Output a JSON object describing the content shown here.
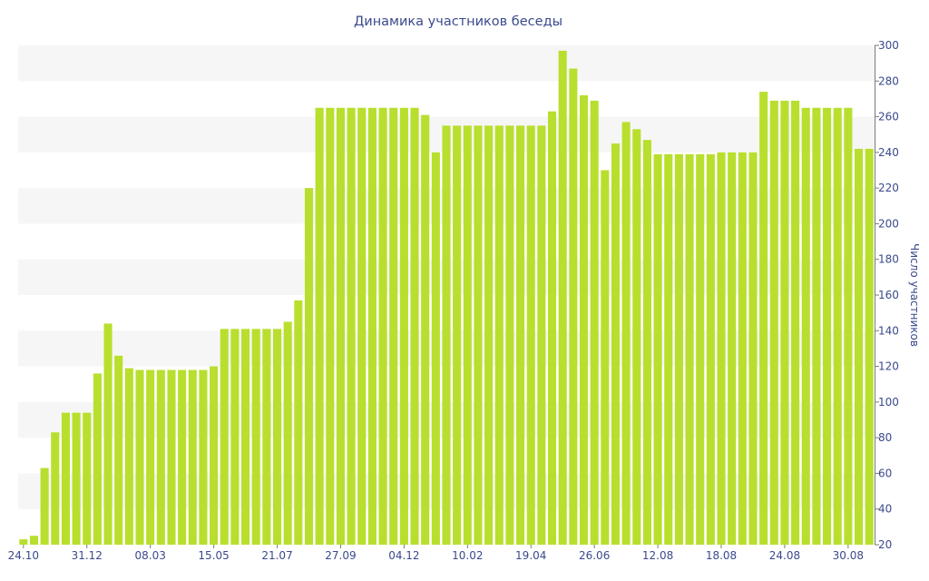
{
  "chart_data": {
    "type": "bar",
    "title": "Динамика участников беседы",
    "xlabel": "",
    "ylabel": "Число участников",
    "ylim": [
      20,
      300
    ],
    "yticks": [
      20,
      40,
      60,
      80,
      100,
      120,
      140,
      160,
      180,
      200,
      220,
      240,
      260,
      280,
      300
    ],
    "grid": true,
    "legend": "none",
    "colors": {
      "bar": "#b8df2e",
      "text": "#3a4a8c",
      "band": "#f6f6f6"
    },
    "x_tick_labels": [
      {
        "index": 0,
        "label": "24.10"
      },
      {
        "index": 6,
        "label": "31.12"
      },
      {
        "index": 12,
        "label": "08.03"
      },
      {
        "index": 18,
        "label": "15.05"
      },
      {
        "index": 24,
        "label": "21.07"
      },
      {
        "index": 30,
        "label": "27.09"
      },
      {
        "index": 36,
        "label": "04.12"
      },
      {
        "index": 42,
        "label": "10.02"
      },
      {
        "index": 48,
        "label": "19.04"
      },
      {
        "index": 54,
        "label": "26.06"
      },
      {
        "index": 60,
        "label": "12.08"
      },
      {
        "index": 66,
        "label": "18.08"
      },
      {
        "index": 72,
        "label": "24.08"
      },
      {
        "index": 78,
        "label": "30.08"
      }
    ],
    "values": [
      23,
      25,
      63,
      83,
      94,
      94,
      94,
      116,
      144,
      126,
      119,
      118,
      118,
      118,
      118,
      118,
      118,
      118,
      120,
      141,
      141,
      141,
      141,
      141,
      141,
      145,
      157,
      220,
      265,
      265,
      265,
      265,
      265,
      265,
      265,
      265,
      265,
      265,
      261,
      240,
      255,
      255,
      255,
      255,
      255,
      255,
      255,
      255,
      255,
      255,
      263,
      297,
      287,
      272,
      269,
      230,
      245,
      257,
      253,
      247,
      239,
      239,
      239,
      239,
      239,
      239,
      240,
      240,
      240,
      240,
      274,
      269,
      269,
      269,
      265,
      265,
      265,
      265,
      265,
      242,
      242
    ]
  }
}
